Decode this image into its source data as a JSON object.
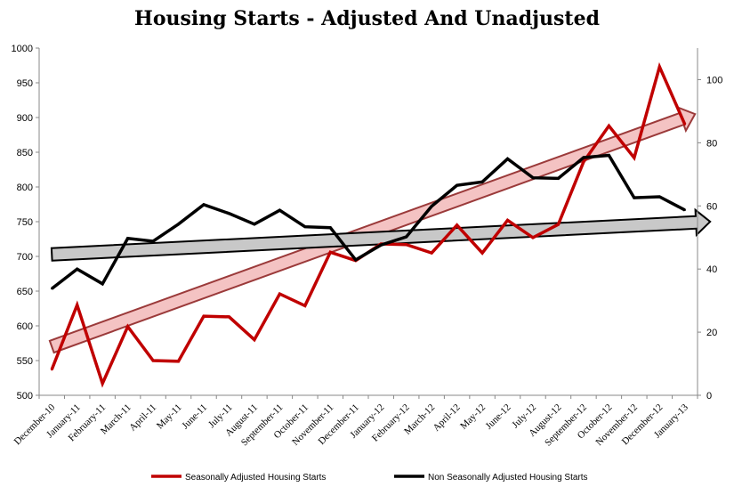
{
  "chart_data": {
    "type": "line",
    "title": "Housing Starts - Adjusted And Unadjusted",
    "categories": [
      "December-10",
      "January-11",
      "February-11",
      "March-11",
      "April-11",
      "May-11",
      "June-11",
      "July-11",
      "August-11",
      "September-11",
      "October-11",
      "November-11",
      "December-11",
      "January-12",
      "February-12",
      "March-12",
      "April-12",
      "May-12",
      "June-12",
      "July-12",
      "August-12",
      "September-12",
      "October-12",
      "November-12",
      "December-12",
      "January-13"
    ],
    "y_left": {
      "ylim": [
        500,
        1000
      ],
      "ticks": [
        500,
        550,
        600,
        650,
        700,
        750,
        800,
        850,
        900,
        950,
        1000
      ]
    },
    "y_right": {
      "ylim": [
        0,
        110
      ],
      "ticks": [
        0,
        20,
        40,
        60,
        80,
        100
      ]
    },
    "series": [
      {
        "name": "Seasonally Adjusted Housing Starts",
        "axis": "left",
        "color": "#c00000",
        "values": [
          537,
          630,
          517,
          599,
          550,
          549,
          614,
          613,
          580,
          646,
          629,
          706,
          694,
          718,
          717,
          705,
          745,
          705,
          752,
          727,
          746,
          836,
          888,
          842,
          973,
          890
        ]
      },
      {
        "name": "Non Seasonally Adjusted Housing Starts",
        "axis": "right",
        "color": "#000000",
        "values": [
          33.8,
          40.0,
          35.3,
          49.7,
          48.8,
          54.2,
          60.4,
          57.6,
          54.2,
          58.6,
          53.4,
          53.1,
          42.9,
          47.6,
          50.2,
          59.9,
          66.5,
          67.6,
          74.9,
          68.9,
          68.7,
          75.3,
          76.0,
          62.6,
          62.9,
          58.7
        ]
      }
    ],
    "trend_arrows": [
      {
        "axis": "left",
        "from": {
          "x": 0,
          "y": 570
        },
        "to": {
          "x": 25.4,
          "y": 905
        },
        "fill": "#f4c3c3",
        "stroke": "#9b3a3a"
      },
      {
        "axis": "left",
        "from": {
          "x": 0,
          "y": 703
        },
        "to": {
          "x": 26,
          "y": 750
        },
        "fill": "#c8c8c8",
        "stroke": "#000000"
      }
    ],
    "legend_position": "bottom",
    "grid": false
  }
}
